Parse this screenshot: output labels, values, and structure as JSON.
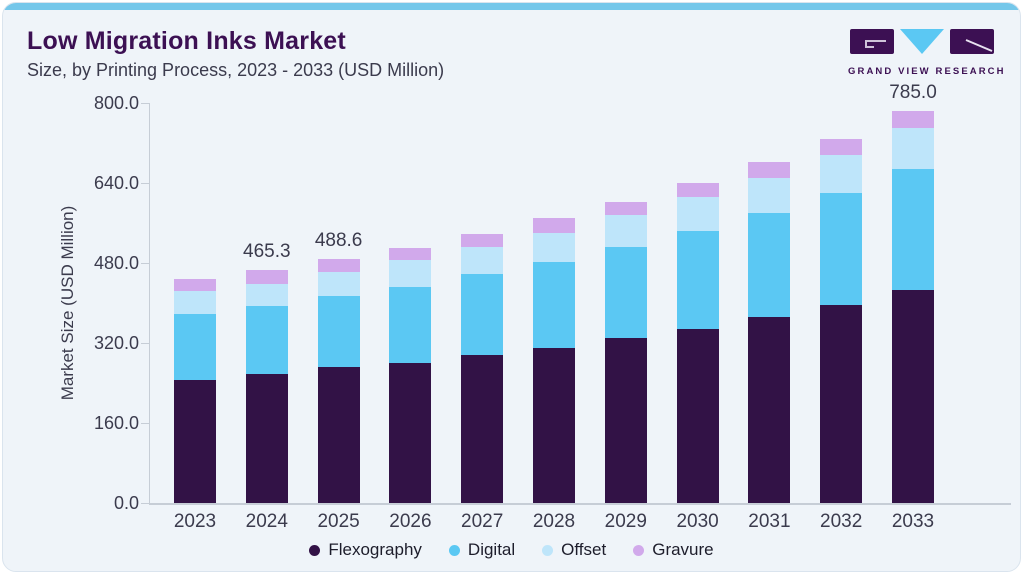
{
  "header": {
    "title": "Low Migration Inks Market",
    "subtitle": "Size, by Printing Process, 2023 - 2033 (USD Million)",
    "logo_text": "GRAND VIEW RESEARCH"
  },
  "colors": {
    "card_background": "#EFF4F9",
    "top_strip": "#74C7EA",
    "brand_purple": "#3C1053",
    "text": "#3B3B4D",
    "axis_line": "#C6CDD6",
    "flexography": "#321246",
    "digital": "#5BC8F3",
    "offset": "#BEE5FA",
    "gravure": "#D1A9EB"
  },
  "chart_data": {
    "type": "bar",
    "stacked": true,
    "title": "Low Migration Inks Market Size, by Printing Process, 2023 - 2033 (USD Million)",
    "xlabel": "",
    "ylabel": "Market Size (USD Million)",
    "ylim": [
      0,
      800
    ],
    "ytick_step": 160,
    "ytick_labels": [
      "0.0",
      "160.0",
      "320.0",
      "480.0",
      "640.0",
      "800.0"
    ],
    "grid": false,
    "legend_position": "bottom",
    "categories": [
      "2023",
      "2024",
      "2025",
      "2026",
      "2027",
      "2028",
      "2029",
      "2030",
      "2031",
      "2032",
      "2033"
    ],
    "series": [
      {
        "name": "Flexography",
        "color": "#321246",
        "values": [
          246.0,
          257.3,
          271.9,
          280.2,
          296.0,
          311.0,
          329.4,
          348.5,
          372.5,
          396.5,
          426.2
        ]
      },
      {
        "name": "Digital",
        "color": "#5BC8F3",
        "values": [
          132.0,
          135.9,
          141.8,
          152.3,
          162.0,
          170.8,
          182.5,
          194.8,
          207.1,
          224.1,
          241.9
        ]
      },
      {
        "name": "Offset",
        "color": "#BEE5FA",
        "values": [
          45.1,
          45.3,
          48.7,
          52.7,
          54.5,
          58.2,
          64.2,
          68.5,
          71.1,
          75.2,
          82.5
        ]
      },
      {
        "name": "Gravure",
        "color": "#D1A9EB",
        "values": [
          24.6,
          26.8,
          26.2,
          25.2,
          26.0,
          30.8,
          26.0,
          27.3,
          30.8,
          31.4,
          34.4
        ]
      }
    ],
    "totals": [
      447.7,
      465.3,
      488.6,
      510.4,
      538.5,
      570.8,
      602.1,
      639.1,
      681.5,
      727.2,
      785.0
    ],
    "shown_total_labels": [
      "",
      "465.3",
      "488.6",
      "",
      "",
      "",
      "",
      "",
      "",
      "",
      "785.0"
    ]
  }
}
